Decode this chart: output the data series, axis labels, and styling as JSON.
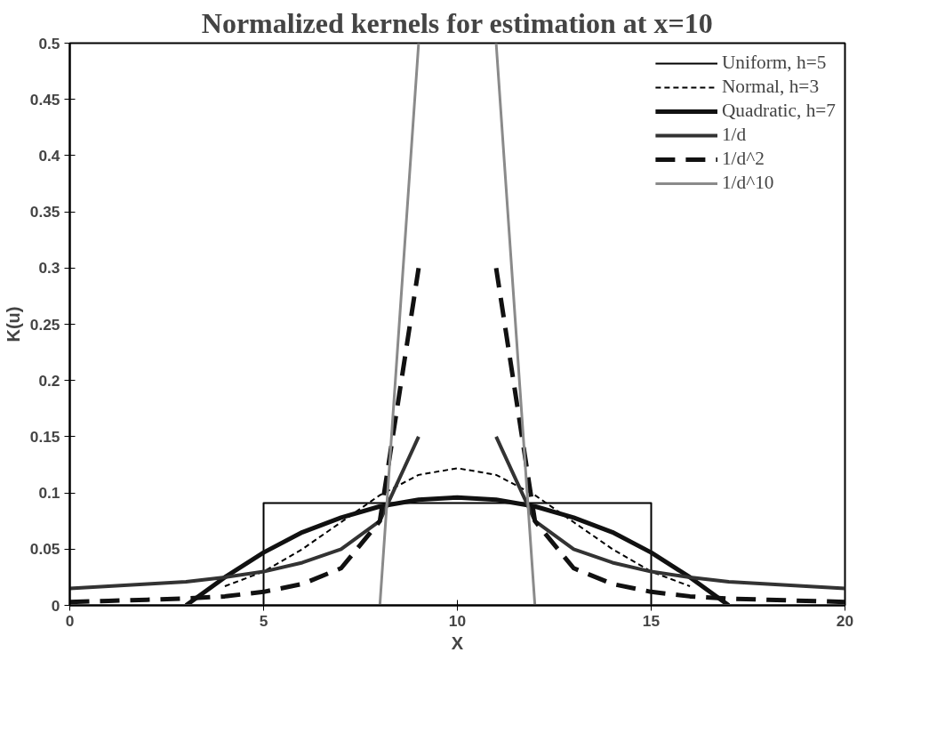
{
  "chart_data": {
    "type": "line",
    "title": "Normalized kernels for estimation at x=10",
    "xlabel": "X",
    "ylabel": "K(u)",
    "xlim": [
      0,
      20
    ],
    "xticks": [
      0,
      5,
      10,
      15,
      20
    ],
    "ylim": [
      0,
      0.5
    ],
    "yticks": [
      0,
      0.05,
      0.1,
      0.15,
      0.2,
      0.25,
      0.3,
      0.35,
      0.4,
      0.45,
      0.5
    ],
    "grid": false,
    "legend": "top right",
    "marker": "none",
    "series": [
      {
        "name": "Uniform, h=5",
        "color": "#000000",
        "line_style": "solid",
        "x": [
          0,
          5,
          5,
          15,
          15,
          20
        ],
        "values": [
          0,
          0,
          0.091,
          0.091,
          0,
          0
        ]
      },
      {
        "name": "Normal, h=3",
        "color": "#000000",
        "line_style": "dashed",
        "x": [
          4,
          5,
          6,
          7,
          8,
          9,
          10,
          11,
          12,
          13,
          14,
          15,
          16
        ],
        "values": [
          0.017,
          0.03,
          0.05,
          0.074,
          0.098,
          0.116,
          0.122,
          0.116,
          0.098,
          0.074,
          0.05,
          0.03,
          0.017
        ]
      },
      {
        "name": "Quadratic, h=7",
        "color": "#111111",
        "line_style": "solid",
        "x": [
          3,
          4,
          5,
          6,
          7,
          8,
          9,
          10,
          11,
          12,
          13,
          14,
          15,
          16,
          17
        ],
        "values": [
          0,
          0.025,
          0.047,
          0.065,
          0.078,
          0.088,
          0.094,
          0.096,
          0.094,
          0.088,
          0.078,
          0.065,
          0.047,
          0.025,
          0
        ]
      },
      {
        "name": "1/d",
        "color": "#333333",
        "line_style": "solid",
        "x": [
          0,
          1,
          2,
          3,
          4,
          5,
          6,
          7,
          8,
          9,
          10,
          11,
          12,
          13,
          14,
          15,
          16,
          17,
          18,
          19,
          20
        ],
        "values": [
          0.015,
          0.017,
          0.019,
          0.021,
          0.025,
          0.03,
          0.038,
          0.05,
          0.075,
          0.15,
          null,
          0.15,
          0.075,
          0.05,
          0.038,
          0.03,
          0.025,
          0.021,
          0.019,
          0.017,
          0.015
        ]
      },
      {
        "name": "1/d^2",
        "color": "#111111",
        "line_style": "dashed",
        "x": [
          0,
          1,
          2,
          3,
          4,
          5,
          6,
          7,
          8,
          9,
          10,
          11,
          12,
          13,
          14,
          15,
          16,
          17,
          18,
          19,
          20
        ],
        "values": [
          0.003,
          0.004,
          0.005,
          0.006,
          0.008,
          0.012,
          0.019,
          0.033,
          0.075,
          0.3,
          null,
          0.3,
          0.075,
          0.033,
          0.019,
          0.012,
          0.008,
          0.006,
          0.005,
          0.004,
          0.003
        ]
      },
      {
        "name": "1/d^10",
        "color": "#8a8a8a",
        "line_style": "solid",
        "x": [
          0,
          1,
          2,
          3,
          4,
          5,
          6,
          7,
          8,
          9,
          10,
          11,
          12,
          13,
          14,
          15,
          16,
          17,
          18,
          19,
          20
        ],
        "values": [
          0,
          0,
          0,
          0,
          0,
          0,
          0,
          0,
          0,
          0.5,
          null,
          0.5,
          0,
          0,
          0,
          0,
          0,
          0,
          0,
          0,
          0
        ]
      }
    ]
  }
}
